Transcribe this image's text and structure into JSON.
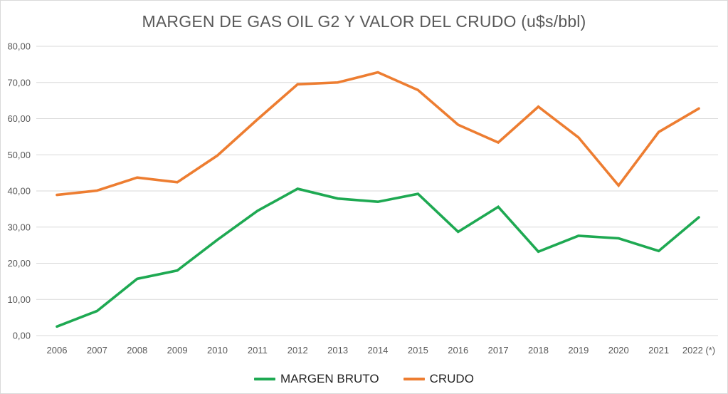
{
  "title": "MARGEN DE GAS OIL G2 Y VALOR DEL CRUDO (u$s/bbl)",
  "chart_data": {
    "type": "line",
    "categories": [
      "2006",
      "2007",
      "2008",
      "2009",
      "2010",
      "2011",
      "2012",
      "2013",
      "2014",
      "2015",
      "2016",
      "2017",
      "2018",
      "2019",
      "2020",
      "2021",
      "2022 (*)"
    ],
    "series": [
      {
        "name": "MARGEN BRUTO",
        "color": "#1ea952",
        "values": [
          2.5,
          6.8,
          15.7,
          18.0,
          26.5,
          34.5,
          40.6,
          37.9,
          37.0,
          39.2,
          28.7,
          35.6,
          23.2,
          27.6,
          26.9,
          23.4,
          32.7
        ]
      },
      {
        "name": "CRUDO",
        "color": "#ed7d31",
        "values": [
          38.9,
          40.1,
          43.7,
          42.4,
          49.8,
          59.8,
          69.5,
          70.0,
          72.8,
          67.9,
          58.3,
          53.4,
          63.3,
          54.8,
          41.5,
          56.3,
          62.8
        ]
      }
    ],
    "ylim": [
      0,
      80
    ],
    "ytick_step": 10,
    "y_tick_labels": [
      "0,00",
      "10,00",
      "20,00",
      "30,00",
      "40,00",
      "50,00",
      "60,00",
      "70,00",
      "80,00"
    ],
    "xlabel": "",
    "ylabel": "",
    "grid": true,
    "legend_position": "bottom",
    "gridline_color": "#d9d9d9",
    "axis_label_color": "#595959",
    "title_color": "#595959"
  }
}
